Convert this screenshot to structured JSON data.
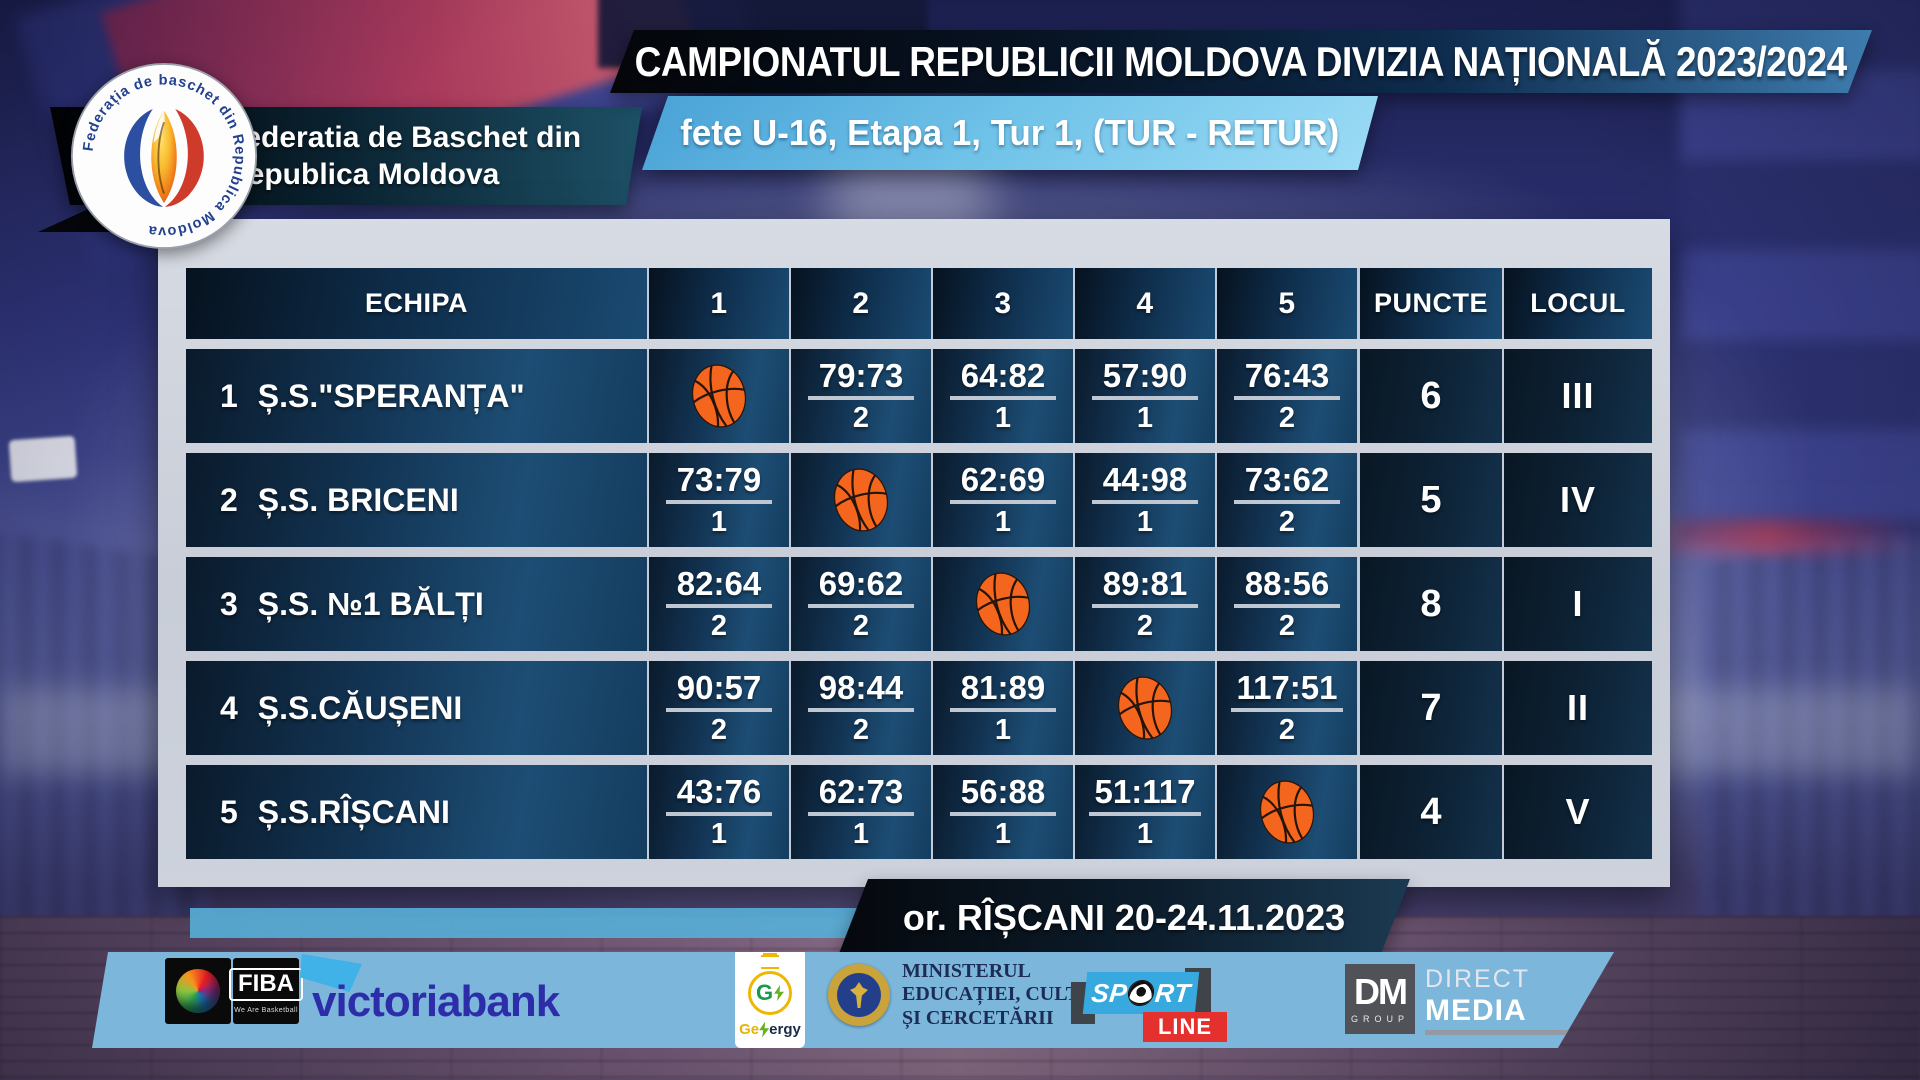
{
  "header": {
    "championship_title": "CAMPIONATUL REPUBLICII MOLDOVA DIVIZIA NAȚIONALĂ 2023/2024",
    "subtitle": "fete U-16, Etapa 1, Tur 1, (TUR - RETUR)",
    "federation_line1": "Federatia de Baschet din",
    "federation_line2": "Republica Moldova",
    "logo_ring_text": "Federația de baschet din Republica Moldova"
  },
  "table": {
    "columns": [
      "ECHIPA",
      "1",
      "2",
      "3",
      "4",
      "5",
      "PUNCTE",
      "LOCUL"
    ],
    "rows": [
      {
        "num": "1",
        "team": "Ș.S.\"SPERANȚA\"",
        "cells": [
          {
            "type": "ball"
          },
          {
            "type": "score",
            "score": "79:73",
            "pts": "2"
          },
          {
            "type": "score",
            "score": "64:82",
            "pts": "1"
          },
          {
            "type": "score",
            "score": "57:90",
            "pts": "1"
          },
          {
            "type": "score",
            "score": "76:43",
            "pts": "2"
          }
        ],
        "puncte": "6",
        "locul": "III"
      },
      {
        "num": "2",
        "team": "Ș.S. BRICENI",
        "cells": [
          {
            "type": "score",
            "score": "73:79",
            "pts": "1"
          },
          {
            "type": "ball"
          },
          {
            "type": "score",
            "score": "62:69",
            "pts": "1"
          },
          {
            "type": "score",
            "score": "44:98",
            "pts": "1"
          },
          {
            "type": "score",
            "score": "73:62",
            "pts": "2"
          }
        ],
        "puncte": "5",
        "locul": "IV"
      },
      {
        "num": "3",
        "team": "Ș.S. №1 BĂLȚI",
        "cells": [
          {
            "type": "score",
            "score": "82:64",
            "pts": "2"
          },
          {
            "type": "score",
            "score": "69:62",
            "pts": "2"
          },
          {
            "type": "ball"
          },
          {
            "type": "score",
            "score": "89:81",
            "pts": "2"
          },
          {
            "type": "score",
            "score": "88:56",
            "pts": "2"
          }
        ],
        "puncte": "8",
        "locul": "I"
      },
      {
        "num": "4",
        "team": "Ș.S.CĂUȘENI",
        "cells": [
          {
            "type": "score",
            "score": "90:57",
            "pts": "2"
          },
          {
            "type": "score",
            "score": "98:44",
            "pts": "2"
          },
          {
            "type": "score",
            "score": "81:89",
            "pts": "1"
          },
          {
            "type": "ball"
          },
          {
            "type": "score",
            "score": "117:51",
            "pts": "2"
          }
        ],
        "puncte": "7",
        "locul": "II"
      },
      {
        "num": "5",
        "team": "Ș.S.RÎȘCANI",
        "cells": [
          {
            "type": "score",
            "score": "43:76",
            "pts": "1"
          },
          {
            "type": "score",
            "score": "62:73",
            "pts": "1"
          },
          {
            "type": "score",
            "score": "56:88",
            "pts": "1"
          },
          {
            "type": "score",
            "score": "51:117",
            "pts": "1"
          },
          {
            "type": "ball"
          }
        ],
        "puncte": "4",
        "locul": "V"
      }
    ]
  },
  "footer": {
    "location_date": "or. RÎȘCANI 20-24.11.2023",
    "sponsors": {
      "fiba": {
        "name": "FIBA",
        "tagline": "We Are Basketball"
      },
      "victoriabank": {
        "wordmark": "victoriabank"
      },
      "gexergy": {
        "prefix": "Ge",
        "suffix": "ergy"
      },
      "ministry": {
        "line1": "MINISTERUL",
        "line2": "EDUCAȚIEI, CULTURII",
        "line3": "ȘI CERCETĂRII"
      },
      "sportline": {
        "sp": "SP",
        "rt": "RT",
        "line": "LINE"
      },
      "dm": {
        "initials": "DM",
        "group": "GROUP",
        "direct": "DIRECT",
        "media": "MEDIA"
      }
    }
  },
  "colors": {
    "banner_dark": "#0a1726",
    "subtitle_blue": "#6fc2e8",
    "cell_navy": "#143d5f",
    "panel_gray": "#ccd2dc",
    "strip_blue": "#7cb6da",
    "ball_orange": "#f4661e",
    "sport_blue": "#38a9de",
    "line_red": "#e5312e",
    "victoria_blue": "#2d2daa"
  },
  "chart_data": {
    "type": "table",
    "title": "CAMPIONATUL REPUBLICII MOLDOVA DIVIZIA NAȚIONALĂ 2023/2024",
    "subtitle": "fete U-16, Etapa 1, Tur 1, (TUR - RETUR)",
    "columns": [
      "ECHIPA",
      "1",
      "2",
      "3",
      "4",
      "5",
      "PUNCTE",
      "LOCUL"
    ],
    "rows": [
      [
        "1 Ș.S.\"SPERANȚA\"",
        "",
        "79:73 (2)",
        "64:82 (1)",
        "57:90 (1)",
        "76:43 (2)",
        "6",
        "III"
      ],
      [
        "2 Ș.S. BRICENI",
        "73:79 (1)",
        "",
        "62:69 (1)",
        "44:98 (1)",
        "73:62 (2)",
        "5",
        "IV"
      ],
      [
        "3 Ș.S. №1 BĂLȚI",
        "82:64 (2)",
        "69:62 (2)",
        "",
        "89:81 (2)",
        "88:56 (2)",
        "8",
        "I"
      ],
      [
        "4 Ș.S.CĂUȘENI",
        "90:57 (2)",
        "98:44 (2)",
        "81:89 (1)",
        "",
        "117:51 (2)",
        "7",
        "II"
      ],
      [
        "5 Ș.S.RÎȘCANI",
        "43:76 (1)",
        "62:73 (1)",
        "56:88 (1)",
        "51:117 (1)",
        "",
        "4",
        "V"
      ]
    ],
    "event_footer": "or. RÎȘCANI 20-24.11.2023"
  }
}
